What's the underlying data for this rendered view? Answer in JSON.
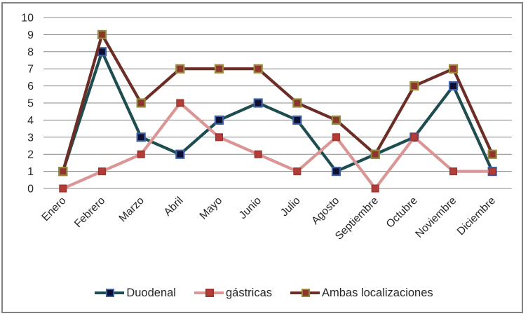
{
  "chart_data": {
    "type": "line",
    "categories": [
      "Enero",
      "Febrero",
      "Marzo",
      "Abril",
      "Mayo",
      "Junio",
      "Julio",
      "Agosto",
      "Septiembre",
      "Octubre",
      "Noviembre",
      "Diciembre"
    ],
    "series": [
      {
        "name": "Duodenal",
        "values": [
          1,
          8,
          3,
          2,
          4,
          5,
          4,
          1,
          2,
          3,
          6,
          1
        ],
        "line_color": "#1D4D50",
        "marker_fill": "#0F1031",
        "marker_border": "#3D61A5"
      },
      {
        "name": "gástricas",
        "values": [
          0,
          1,
          2,
          5,
          3,
          2,
          1,
          3,
          0,
          3,
          1,
          1
        ],
        "line_color": "#D99694",
        "marker_fill": "#B13C38",
        "marker_border": "#A03530"
      },
      {
        "name": "Ambas localizaciones",
        "values": [
          1,
          9,
          5,
          7,
          7,
          7,
          5,
          4,
          2,
          6,
          7,
          2
        ],
        "line_color": "#6C2D26",
        "marker_fill": "#8F3530",
        "marker_border": "#938A3A"
      }
    ],
    "title": "",
    "xlabel": "",
    "ylabel": "",
    "ylim": [
      0,
      10
    ],
    "ytick_step": 1,
    "yticks": [
      0,
      1,
      2,
      3,
      4,
      5,
      6,
      7,
      8,
      9,
      10
    ],
    "grid": "horizontal",
    "legend_position": "bottom",
    "x_label_rotation_deg": 45
  },
  "colors": {
    "background": "#FFFFFF",
    "frame_border": "#828282",
    "gridline": "#898989",
    "axis_text": "#262626"
  }
}
